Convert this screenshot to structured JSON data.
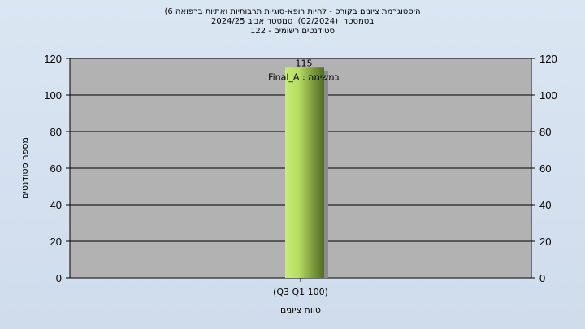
{
  "chart_data": {
    "type": "bar",
    "title_lines": [
      "(היסטוגרמת ציונים בקורס - להיות רופא-סוגיות תרבותיות ואתיות ברפואה 6",
      "בסמסטר  (02/2024)  סמסטר אביב 2024/25",
      "סטודנטים רשומים - 122"
    ],
    "categories": [
      "(Q3 Q1 100)"
    ],
    "values": [
      115
    ],
    "data_labels": [
      "115"
    ],
    "series_label": "במשימה : Final_A",
    "xlabel": "טווח ציונים",
    "ylabel": "מספר סטודנטים",
    "ylim": [
      0,
      120
    ],
    "yticks": [
      0,
      20,
      40,
      60,
      80,
      100,
      120
    ],
    "grid": true,
    "colors": {
      "plot_bg": "#b2b2b2",
      "bar_light": "#c8ec78",
      "bar_dark": "#4e6e1c",
      "grid": "#000000"
    }
  }
}
